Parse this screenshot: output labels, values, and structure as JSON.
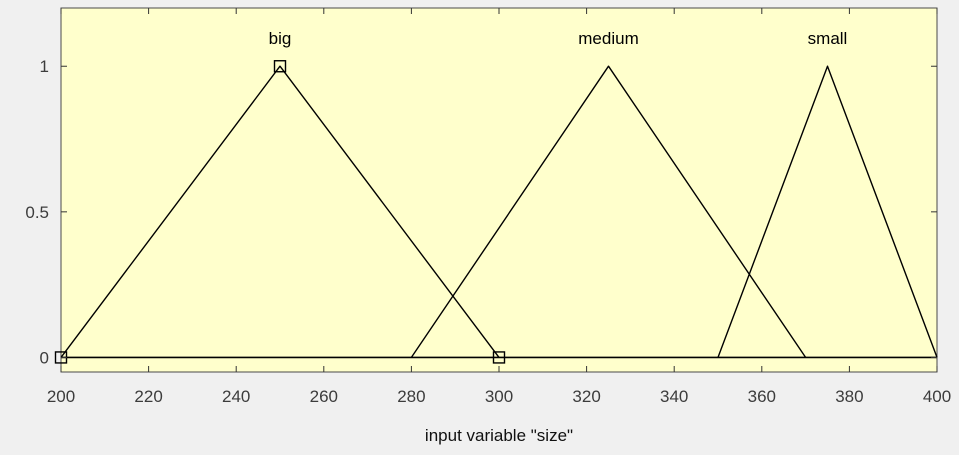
{
  "chart_data": {
    "type": "line",
    "title": "",
    "xlabel": "input variable \"size\"",
    "ylabel": "",
    "xlim": [
      200,
      400
    ],
    "ylim": [
      -0.05,
      1.2
    ],
    "x_ticks": [
      200,
      220,
      240,
      260,
      280,
      300,
      320,
      340,
      360,
      380,
      400
    ],
    "y_ticks": [
      0,
      0.5,
      1
    ],
    "y_tick_labels": [
      "0",
      "0.5",
      "1"
    ],
    "grid": false,
    "series": [
      {
        "name": "big",
        "x": [
          200,
          250,
          300
        ],
        "y": [
          0,
          1,
          0
        ]
      },
      {
        "name": "medium",
        "x": [
          280,
          325,
          370
        ],
        "y": [
          0,
          1,
          0
        ]
      },
      {
        "name": "small",
        "x": [
          350,
          375,
          400
        ],
        "y": [
          0,
          1,
          0
        ]
      }
    ],
    "baseline": {
      "x": [
        200,
        400
      ],
      "y": [
        0,
        0
      ]
    },
    "markers": [
      {
        "x": 250,
        "y": 1
      },
      {
        "x": 300,
        "y": 0
      },
      {
        "x": 200,
        "y": 0
      }
    ],
    "colors": {
      "plot_background": "#ffffcc",
      "page_background": "#f0f0f0",
      "line": "#000000",
      "axis_text": "#3c3c3c"
    }
  }
}
